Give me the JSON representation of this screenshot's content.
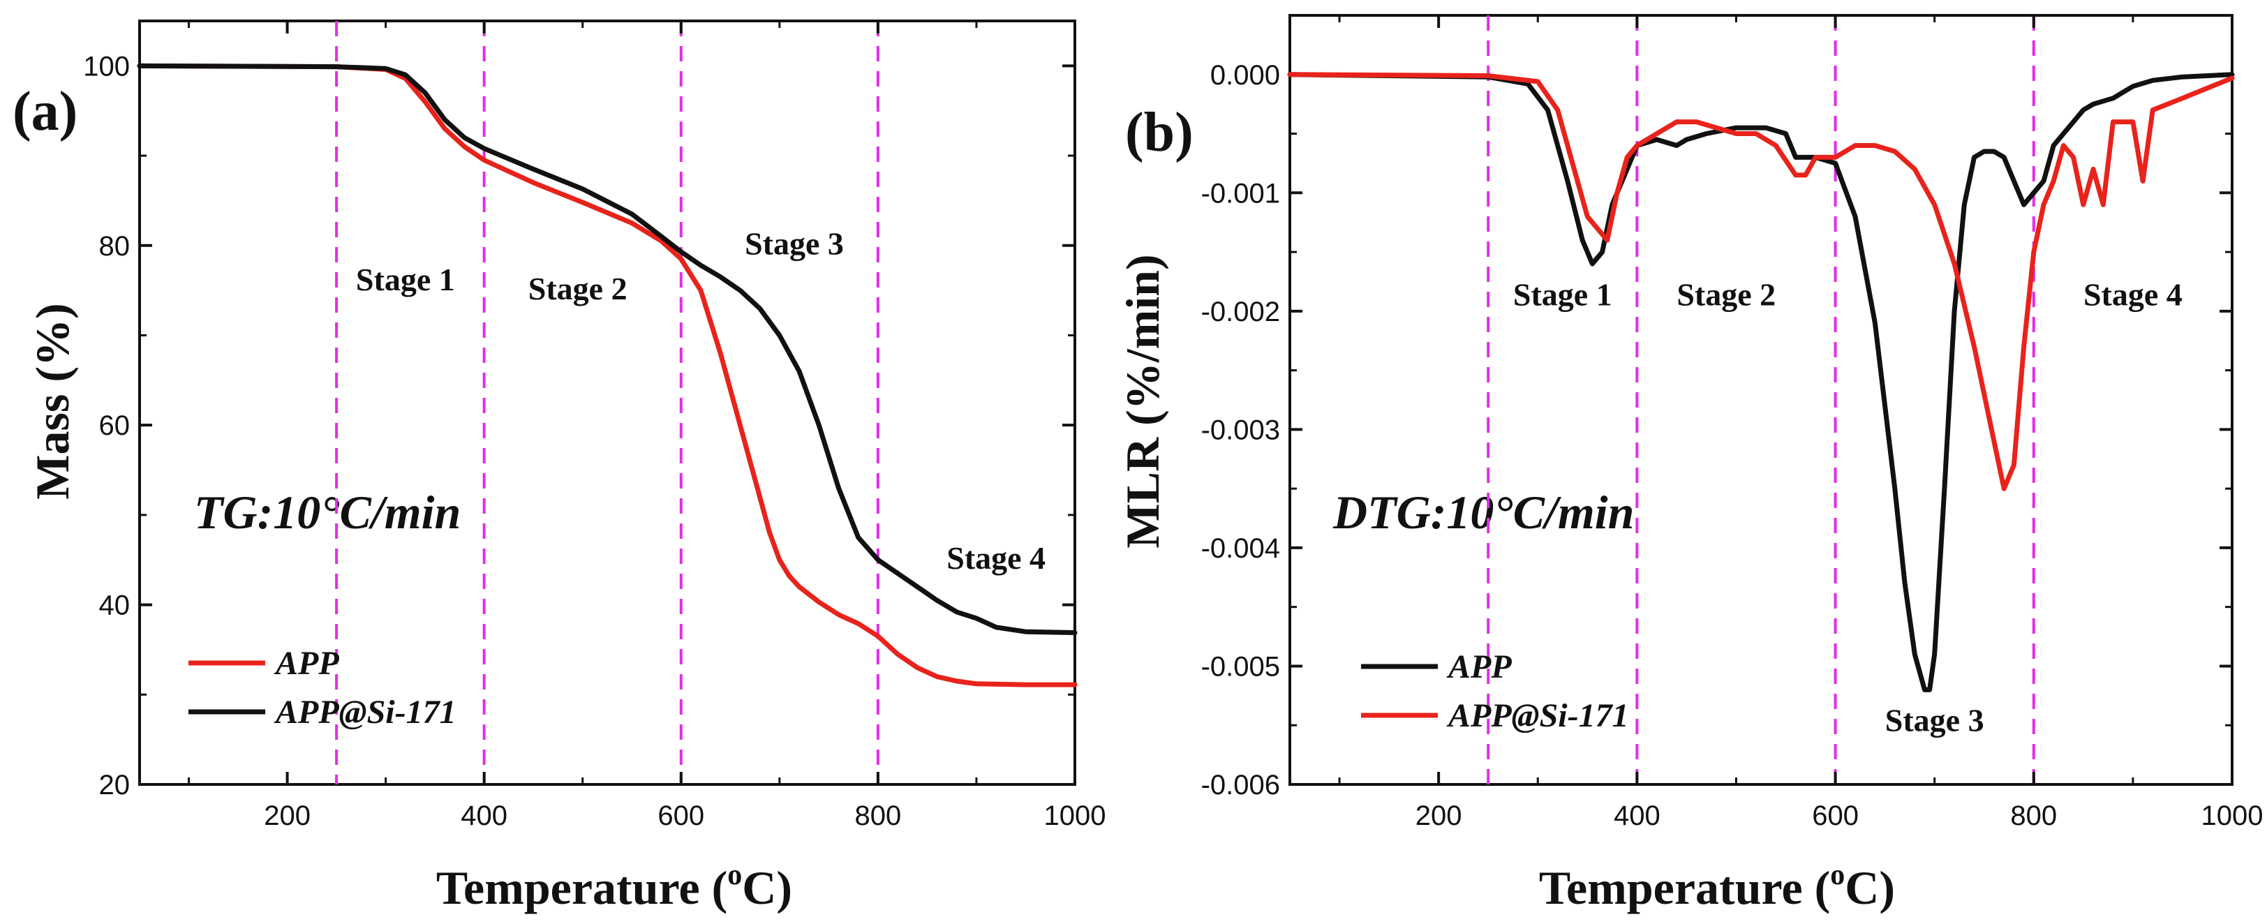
{
  "chart_data": [
    {
      "type": "line",
      "panel_label": "(a)",
      "title": "",
      "xlabel": "Temperature (oC)",
      "xlabel_main": "Temperature (",
      "xlabel_sup": "o",
      "xlabel_unit": "C)",
      "ylabel": "Mass (%)",
      "xlim": [
        50,
        1000
      ],
      "ylim": [
        20,
        105
      ],
      "xticks": [
        200,
        400,
        600,
        800,
        1000
      ],
      "xtick_labels": [
        "200",
        "400",
        "600",
        "800",
        "1000"
      ],
      "yticks": [
        20,
        40,
        60,
        80,
        100
      ],
      "ytick_labels": [
        "20",
        "40",
        "60",
        "80",
        "100"
      ],
      "grid": false,
      "annotation": "TG:10°C/min",
      "stage_lines": [
        250,
        400,
        600,
        800
      ],
      "stage_labels": [
        {
          "text": "Stage 1",
          "x": 320,
          "y": 75
        },
        {
          "text": "Stage 2",
          "x": 495,
          "y": 74
        },
        {
          "text": "Stage 3",
          "x": 715,
          "y": 79
        },
        {
          "text": "Stage 4",
          "x": 920,
          "y": 44
        }
      ],
      "legend_position": "bottom-left",
      "series": [
        {
          "name": "APP",
          "color": "#e8231c",
          "x": [
            50,
            250,
            300,
            320,
            340,
            360,
            380,
            400,
            450,
            500,
            550,
            580,
            600,
            620,
            640,
            660,
            670,
            680,
            690,
            700,
            710,
            720,
            740,
            760,
            780,
            800,
            820,
            840,
            860,
            880,
            900,
            950,
            1000
          ],
          "y": [
            100,
            99.9,
            99.6,
            98.6,
            96,
            93,
            91,
            89.5,
            87,
            84.8,
            82.5,
            80.5,
            78.5,
            75,
            68,
            60,
            56,
            52,
            48,
            45,
            43.2,
            42,
            40.3,
            38.9,
            37.9,
            36.5,
            34.5,
            33,
            32,
            31.5,
            31.2,
            31.1,
            31.1
          ]
        },
        {
          "name": "APP@Si-171",
          "color": "#111111",
          "x": [
            50,
            250,
            300,
            320,
            340,
            360,
            380,
            400,
            450,
            500,
            550,
            580,
            600,
            620,
            640,
            660,
            680,
            700,
            720,
            740,
            760,
            780,
            800,
            820,
            840,
            860,
            880,
            900,
            920,
            950,
            1000
          ],
          "y": [
            100,
            99.9,
            99.7,
            99,
            97,
            94,
            92,
            90.8,
            88.5,
            86.3,
            83.5,
            81,
            79.3,
            77.8,
            76.5,
            75,
            73,
            70,
            66,
            60,
            53,
            47.5,
            45,
            43.5,
            42,
            40.5,
            39.2,
            38.5,
            37.5,
            37,
            36.9
          ]
        }
      ]
    },
    {
      "type": "line",
      "panel_label": "(b)",
      "title": "",
      "xlabel": "Temperature (oC)",
      "xlabel_main": "Temperature (",
      "xlabel_sup": "o",
      "xlabel_unit": "C)",
      "ylabel": "MLR (%/min)",
      "xlim": [
        50,
        1000
      ],
      "ylim": [
        -0.006,
        0.0005
      ],
      "xticks": [
        200,
        400,
        600,
        800,
        1000
      ],
      "xtick_labels": [
        "200",
        "400",
        "600",
        "800",
        "1000"
      ],
      "yticks": [
        0,
        -0.001,
        -0.002,
        -0.003,
        -0.004,
        -0.005,
        -0.006
      ],
      "ytick_labels": [
        "0.000",
        "-0.001",
        "-0.002",
        "-0.003",
        "-0.004",
        "-0.005",
        "-0.006"
      ],
      "grid": false,
      "annotation": "DTG:10°C/min",
      "stage_lines": [
        250,
        400,
        600,
        800
      ],
      "stage_labels": [
        {
          "text": "Stage 1",
          "x": 325,
          "y": -0.00195
        },
        {
          "text": "Stage 2",
          "x": 490,
          "y": -0.00195
        },
        {
          "text": "Stage 3",
          "x": 700,
          "y": -0.00555
        },
        {
          "text": "Stage 4",
          "x": 900,
          "y": -0.00195
        }
      ],
      "legend_position": "bottom-left",
      "series": [
        {
          "name": "APP",
          "color": "#111111",
          "x": [
            50,
            250,
            290,
            310,
            330,
            345,
            355,
            365,
            375,
            390,
            400,
            420,
            440,
            450,
            470,
            500,
            530,
            550,
            560,
            580,
            600,
            620,
            640,
            660,
            670,
            680,
            690,
            695,
            700,
            710,
            720,
            730,
            740,
            750,
            760,
            770,
            780,
            790,
            800,
            810,
            820,
            830,
            840,
            850,
            860,
            880,
            900,
            920,
            950,
            1000
          ],
          "y": [
            0,
            -2e-05,
            -8e-05,
            -0.0003,
            -0.0009,
            -0.0014,
            -0.0016,
            -0.0015,
            -0.0011,
            -0.0008,
            -0.0006,
            -0.00055,
            -0.0006,
            -0.00055,
            -0.0005,
            -0.00045,
            -0.00045,
            -0.0005,
            -0.0007,
            -0.0007,
            -0.00075,
            -0.0012,
            -0.0021,
            -0.0035,
            -0.0043,
            -0.0049,
            -0.0052,
            -0.0052,
            -0.0049,
            -0.0035,
            -0.002,
            -0.0011,
            -0.0007,
            -0.00065,
            -0.00065,
            -0.0007,
            -0.0009,
            -0.0011,
            -0.001,
            -0.0009,
            -0.0006,
            -0.0005,
            -0.0004,
            -0.0003,
            -0.00025,
            -0.0002,
            -0.0001,
            -5e-05,
            -2e-05,
            0
          ]
        },
        {
          "name": "APP@Si-171",
          "color": "#e8231c",
          "x": [
            50,
            250,
            300,
            320,
            340,
            350,
            360,
            370,
            380,
            390,
            400,
            420,
            440,
            460,
            480,
            500,
            520,
            540,
            560,
            570,
            580,
            600,
            620,
            640,
            660,
            680,
            700,
            720,
            740,
            760,
            770,
            780,
            790,
            800,
            810,
            820,
            830,
            840,
            850,
            860,
            870,
            880,
            900,
            910,
            920,
            950,
            1000
          ],
          "y": [
            0,
            -1e-05,
            -6e-05,
            -0.0003,
            -0.0009,
            -0.0012,
            -0.0013,
            -0.0014,
            -0.001,
            -0.0007,
            -0.0006,
            -0.0005,
            -0.0004,
            -0.0004,
            -0.00045,
            -0.0005,
            -0.0005,
            -0.0006,
            -0.00085,
            -0.00085,
            -0.0007,
            -0.0007,
            -0.0006,
            -0.0006,
            -0.00065,
            -0.0008,
            -0.0011,
            -0.0016,
            -0.0023,
            -0.0031,
            -0.0035,
            -0.0033,
            -0.0023,
            -0.0015,
            -0.0011,
            -0.0009,
            -0.0006,
            -0.0007,
            -0.0011,
            -0.0008,
            -0.0011,
            -0.0004,
            -0.0004,
            -0.0009,
            -0.0003,
            -0.0002,
            -3e-05
          ]
        }
      ]
    }
  ]
}
